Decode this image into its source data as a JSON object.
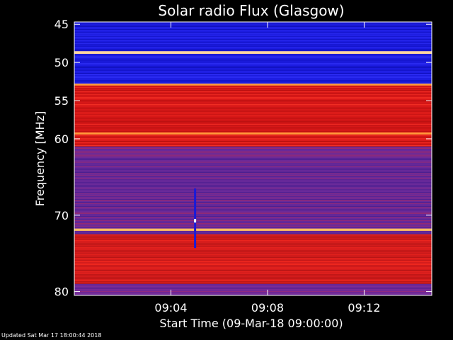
{
  "chart_data": {
    "type": "heatmap",
    "title": "Solar radio Flux (Glasgow)",
    "xlabel": "Start Time (09-Mar-18 09:00:00)",
    "ylabel": "Frequency [MHz]",
    "x_range_minutes": [
      0,
      14.8
    ],
    "y_range_mhz": [
      44.7,
      80.5
    ],
    "x_ticks": [
      {
        "label": "09:04",
        "minute": 4
      },
      {
        "label": "09:08",
        "minute": 8
      },
      {
        "label": "09:12",
        "minute": 12
      }
    ],
    "y_ticks": [
      {
        "label": "45",
        "mhz": 45
      },
      {
        "label": "50",
        "mhz": 50
      },
      {
        "label": "55",
        "mhz": 55
      },
      {
        "label": "60",
        "mhz": 60
      },
      {
        "label": "70",
        "mhz": 70
      },
      {
        "label": "80",
        "mhz": 80
      }
    ],
    "background_regions": [
      {
        "from_mhz": 44.7,
        "to_mhz": 52.8,
        "color": "#1c1ce0"
      },
      {
        "from_mhz": 52.8,
        "to_mhz": 61.0,
        "color": "#d81818"
      },
      {
        "from_mhz": 61.0,
        "to_mhz": 72.5,
        "color": "#6a2a9a"
      },
      {
        "from_mhz": 72.5,
        "to_mhz": 79.0,
        "color": "#d41c1c"
      },
      {
        "from_mhz": 79.0,
        "to_mhz": 80.5,
        "color": "#7a2c98"
      }
    ],
    "bright_lines_mhz": [
      {
        "mhz": 48.7,
        "color": "#ffd7a0",
        "width_mhz": 0.35
      },
      {
        "mhz": 52.9,
        "color": "#ff9a3a",
        "width_mhz": 0.25
      },
      {
        "mhz": 59.3,
        "color": "#ff9a3a",
        "width_mhz": 0.25
      },
      {
        "mhz": 71.9,
        "color": "#ffc060",
        "width_mhz": 0.3
      }
    ],
    "burst": {
      "minute": 5.0,
      "from_mhz": 66.5,
      "to_mhz": 74.3
    }
  },
  "footer_text": "Updated Sat Mar 17 18:00:44 2018"
}
